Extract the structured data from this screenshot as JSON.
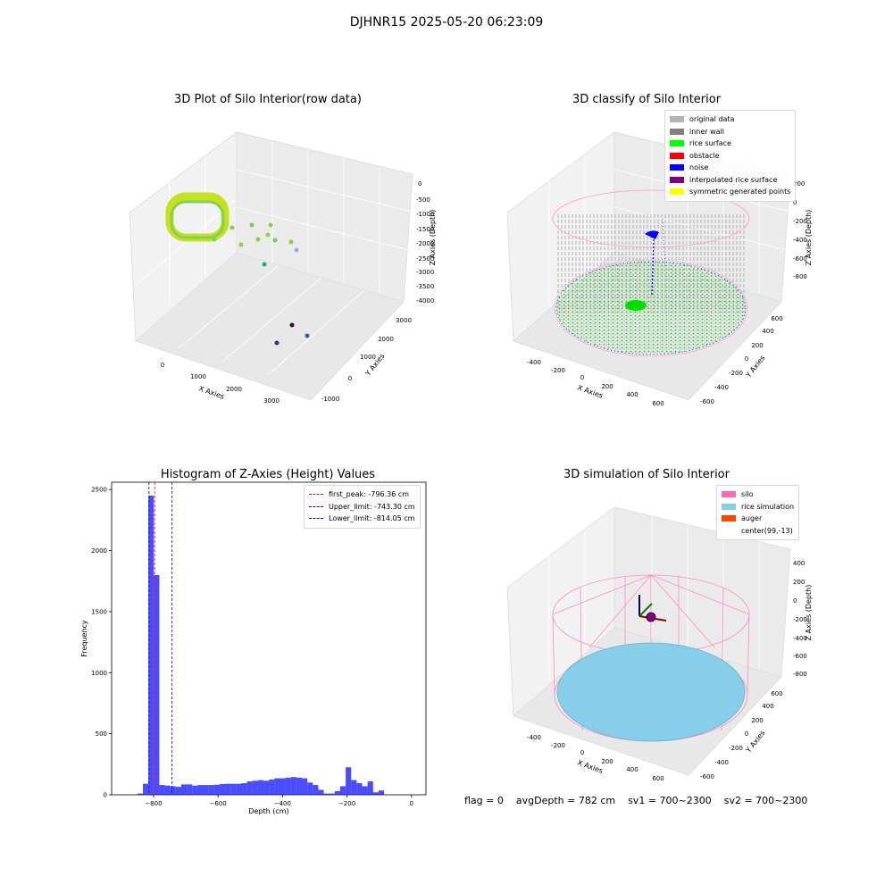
{
  "figure": {
    "suptitle": "DJHNR15 2025-05-20 06:23:09"
  },
  "panels": {
    "raw": {
      "title": "3D Plot of Silo Interior(row data)",
      "xlabel": "X Axies",
      "ylabel": "Y Axies",
      "zlabel": "Z Axies (Depth)"
    },
    "classify": {
      "title": "3D classify of Silo Interior",
      "xlabel": "X Axies",
      "ylabel": "Y Axies",
      "zlabel": "Z Axies (Depth)"
    },
    "hist": {
      "title": "Histogram of Z-Axies (Height) Values",
      "xlabel": "Depth (cm)",
      "ylabel": "Frequency"
    },
    "sim": {
      "title": "3D simulation of Silo Interior",
      "xlabel": "X Axies",
      "ylabel": "Y Axies",
      "zlabel": "Z Axies (Depth)"
    }
  },
  "legend_classify": [
    {
      "label": "original data",
      "color": "#b3b3b3"
    },
    {
      "label": "inner wall",
      "color": "#808080"
    },
    {
      "label": "rice surface",
      "color": "#00ff00"
    },
    {
      "label": "obstacle",
      "color": "#ff0000"
    },
    {
      "label": "noise",
      "color": "#0000ff"
    },
    {
      "label": "interpolated rice surface",
      "color": "#800080"
    },
    {
      "label": "symmetric generated points",
      "color": "#ffff00"
    }
  ],
  "legend_sim": [
    {
      "label": "silo",
      "color": "#ff69b4"
    },
    {
      "label": "rice simulation",
      "color": "#87ceeb"
    },
    {
      "label": "auger",
      "color": "#ff4500"
    },
    {
      "label": "center(99,-13)",
      "color": ""
    }
  ],
  "footer": {
    "flag": "flag = 0",
    "avg_depth": "avgDepth = 782 cm",
    "sv1": "sv1 = 700~2300",
    "sv2": "sv2 = 700~2300"
  },
  "chart_data": [
    {
      "type": "scatter",
      "title": "3D Plot of Silo Interior(row data)",
      "xlabel": "X Axies",
      "ylabel": "Y Axies",
      "zlabel": "Z Axies (Depth)",
      "xticks": [
        "0",
        "1000",
        "2000",
        "3000"
      ],
      "yticks": [
        "-1000",
        "0",
        "1000",
        "2000",
        "3000"
      ],
      "zticks": [
        "0",
        "-500",
        "-1000",
        "-1500",
        "-2000",
        "-2500",
        "-3000",
        "-3500",
        "-4000"
      ],
      "colormap": "viridis"
    },
    {
      "type": "scatter",
      "title": "3D classify of Silo Interior",
      "xlabel": "X Axies",
      "ylabel": "Y Axies",
      "zlabel": "Z Axies (Depth)",
      "xticks": [
        "-400",
        "-200",
        "0",
        "200",
        "400",
        "600"
      ],
      "yticks": [
        "-600",
        "-400",
        "-200",
        "0",
        "200",
        "400",
        "600"
      ],
      "zticks": [
        "200",
        "0",
        "-200",
        "-400",
        "-600",
        "-800"
      ],
      "series": [
        "original data",
        "inner wall",
        "rice surface",
        "obstacle",
        "noise",
        "interpolated rice surface",
        "symmetric generated points"
      ]
    },
    {
      "type": "bar",
      "title": "Histogram of Z-Axies (Height) Values",
      "xlabel": "Depth (cm)",
      "ylabel": "Frequency",
      "xlim": [
        -930,
        45
      ],
      "ylim": [
        0,
        2560
      ],
      "xticks": [
        -800,
        -600,
        -400,
        -200,
        0
      ],
      "yticks": [
        0,
        500,
        1000,
        1500,
        2000,
        2500
      ],
      "bin_width": 17,
      "bins_start": [
        -850,
        -833,
        -816,
        -799,
        -782,
        -765,
        -748,
        -731,
        -714,
        -697,
        -680,
        -663,
        -646,
        -629,
        -612,
        -595,
        -578,
        -561,
        -544,
        -527,
        -510,
        -493,
        -476,
        -459,
        -442,
        -425,
        -408,
        -391,
        -374,
        -357,
        -340,
        -323,
        -306,
        -289,
        -272,
        -255,
        -238,
        -221,
        -204,
        -187,
        -170,
        -153,
        -136,
        -119,
        -102,
        -85,
        -68,
        -51,
        -34,
        -17,
        0
      ],
      "values": [
        10,
        90,
        2450,
        1800,
        80,
        75,
        70,
        65,
        85,
        85,
        75,
        80,
        80,
        80,
        82,
        88,
        90,
        90,
        90,
        95,
        110,
        115,
        120,
        115,
        125,
        135,
        135,
        140,
        145,
        140,
        135,
        100,
        80,
        40,
        10,
        10,
        30,
        70,
        225,
        120,
        95,
        70,
        110,
        20,
        35,
        0,
        0,
        0,
        0,
        0,
        0
      ],
      "color": "#0000ff",
      "lines": [
        {
          "label": "first_peak: -796.36 cm",
          "value": -796.36,
          "color": "#ff0000"
        },
        {
          "label": "Upper_limit: -743.30 cm",
          "value": -743.3,
          "color": "#0000ff"
        },
        {
          "label": "Lower_limit: -814.05 cm",
          "value": -814.05,
          "color": "#00008b"
        }
      ]
    },
    {
      "type": "scatter",
      "title": "3D simulation of Silo Interior",
      "xlabel": "X Axies",
      "ylabel": "Y Axies",
      "zlabel": "Z Axies (Depth)",
      "xticks": [
        "-400",
        "-200",
        "0",
        "200",
        "400",
        "600"
      ],
      "yticks": [
        "-600",
        "-400",
        "-200",
        "0",
        "200",
        "400",
        "600"
      ],
      "zticks": [
        "400",
        "200",
        "0",
        "-200",
        "-400",
        "-600",
        "-800"
      ],
      "series": [
        "silo",
        "rice simulation",
        "auger",
        "center(99,-13)"
      ]
    }
  ]
}
